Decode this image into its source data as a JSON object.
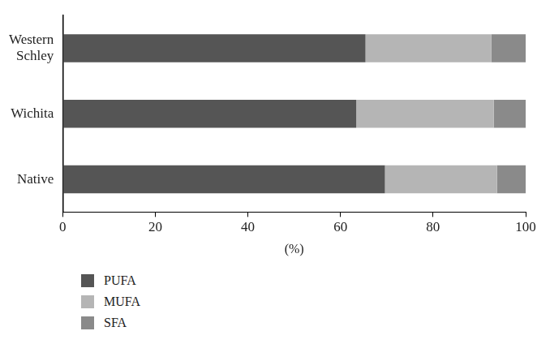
{
  "chart_data": {
    "type": "bar",
    "orientation": "horizontal",
    "stacked": true,
    "categories": [
      "Western Schley",
      "Wichita",
      "Native"
    ],
    "series": [
      {
        "name": "PUFA",
        "color": "#555555",
        "values": [
          65.4,
          63.4,
          69.6
        ]
      },
      {
        "name": "MUFA",
        "color": "#b5b5b5",
        "values": [
          27.2,
          29.7,
          24.2
        ]
      },
      {
        "name": "SFA",
        "color": "#8a8a8a",
        "values": [
          7.4,
          6.9,
          6.2
        ]
      }
    ],
    "x_label": "(%)",
    "xlim": [
      0,
      100
    ],
    "xticks": [
      0,
      20,
      40,
      60,
      80,
      100
    ],
    "grid": false,
    "legend": "bottom"
  }
}
